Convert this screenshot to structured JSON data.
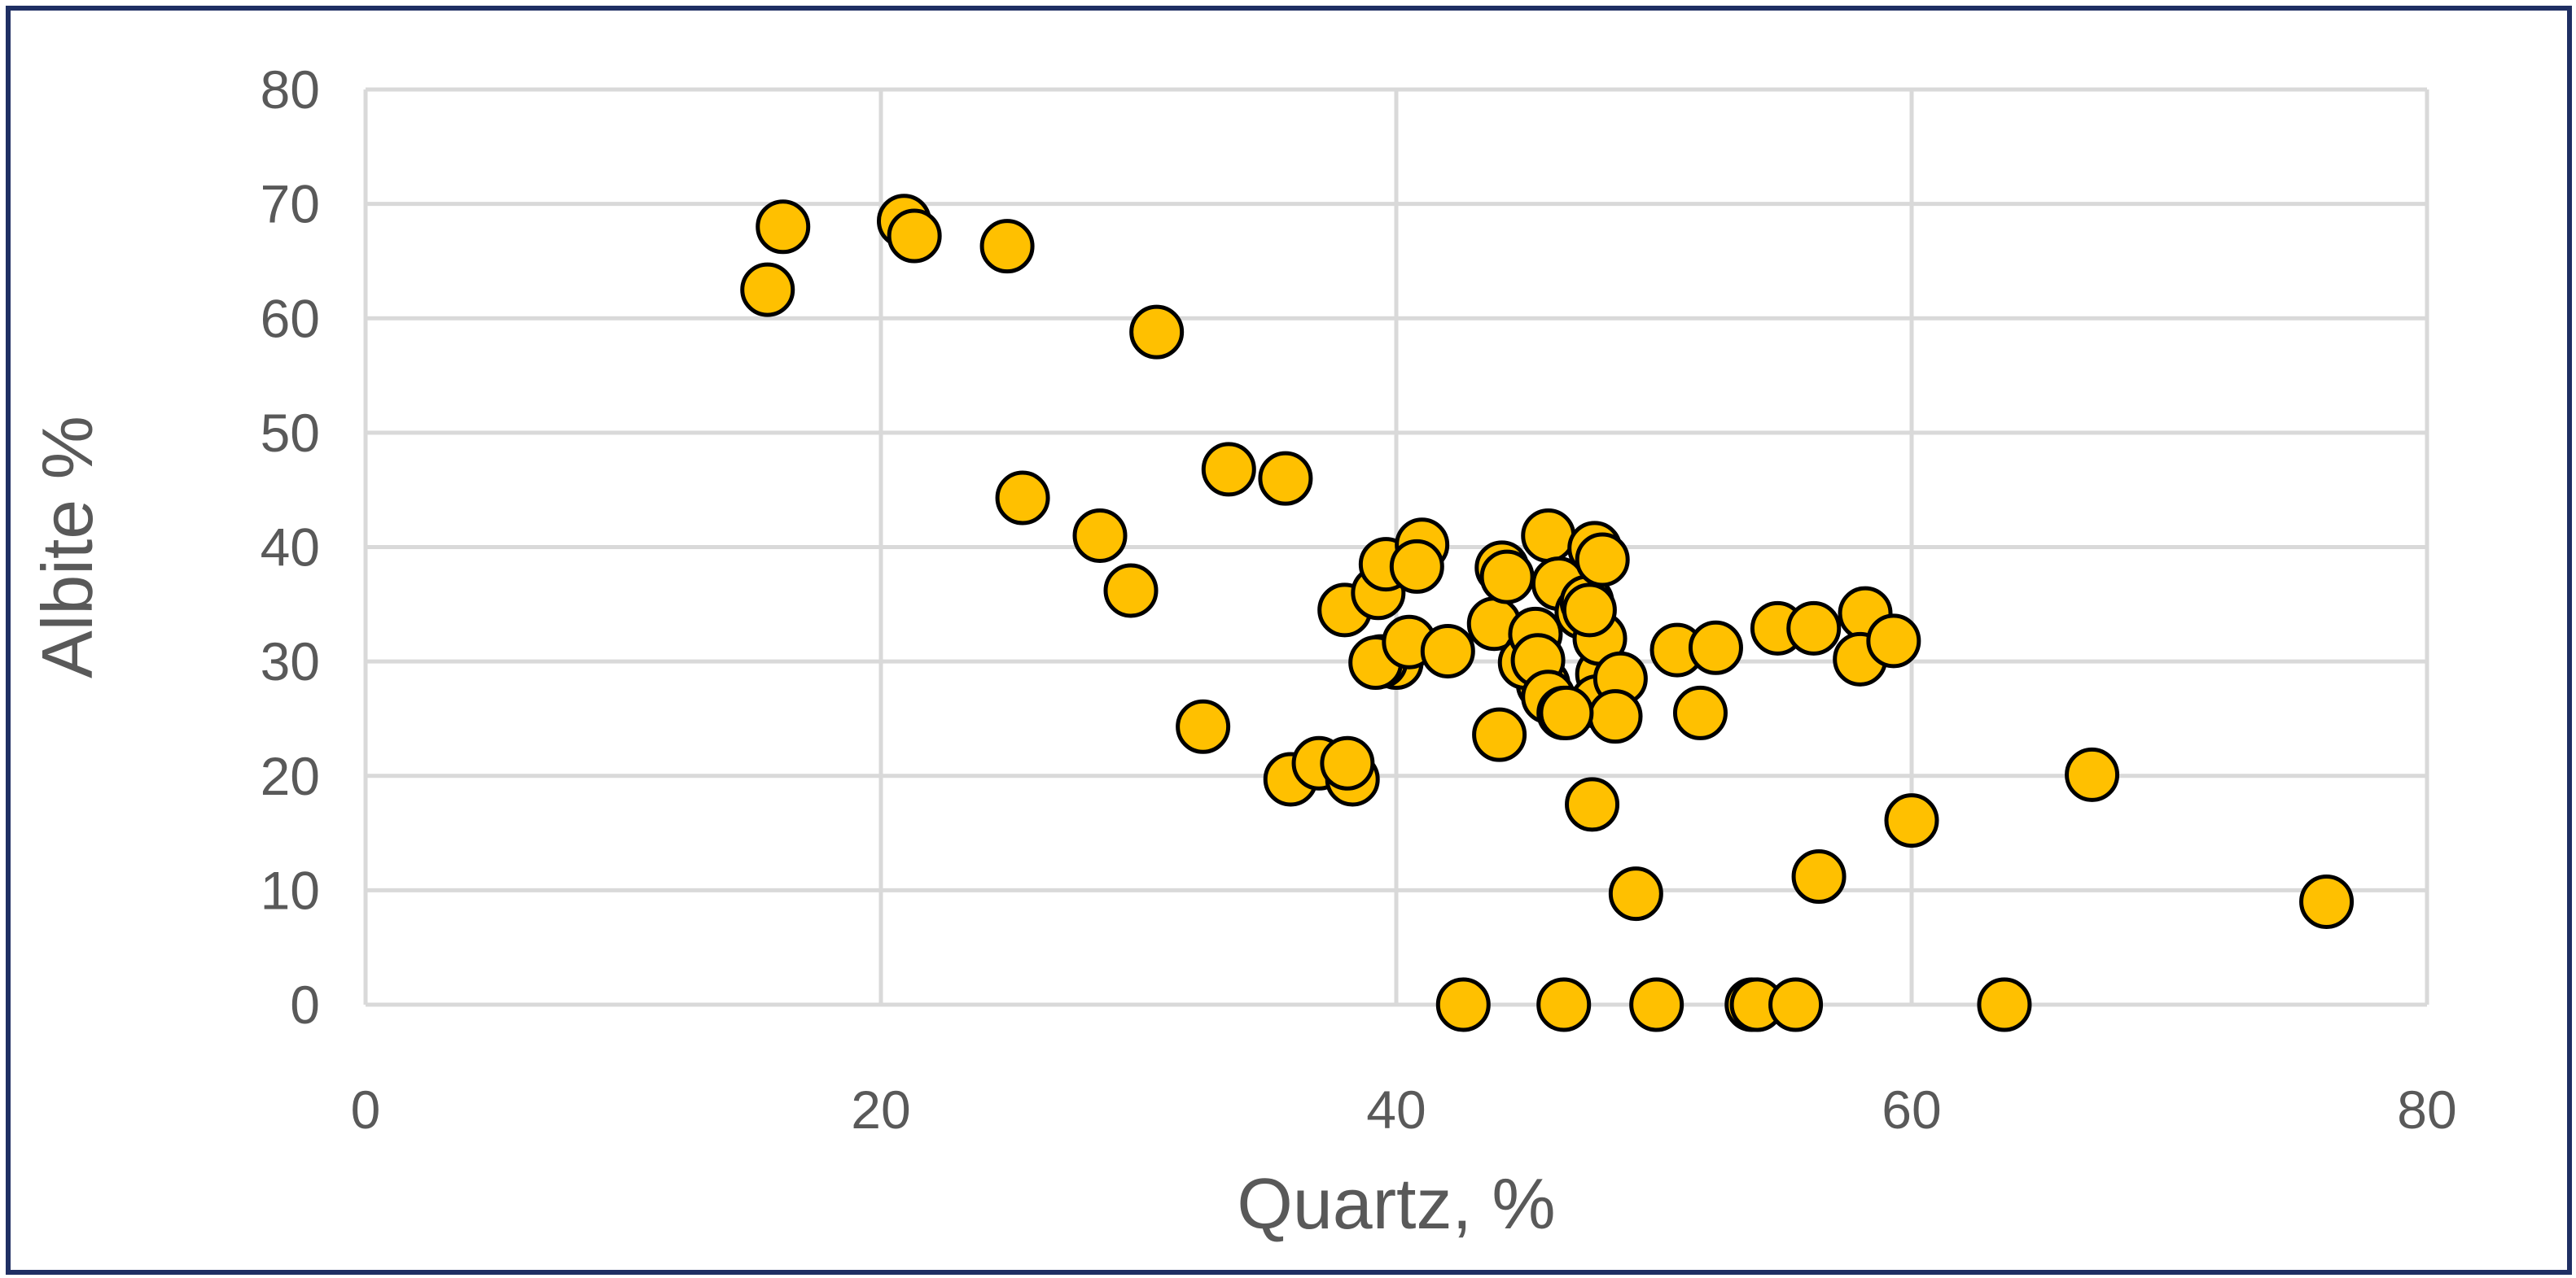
{
  "chart_data": {
    "type": "scatter",
    "title": "",
    "xlabel": "Quartz, %",
    "ylabel": "Albite %",
    "xlim": [
      0,
      80
    ],
    "ylim": [
      0,
      80
    ],
    "x_ticks": [
      0,
      20,
      40,
      60,
      80
    ],
    "y_ticks": [
      0,
      10,
      20,
      30,
      40,
      50,
      60,
      70,
      80
    ],
    "grid": true,
    "legend": "none",
    "colors": {
      "marker_fill": "#ffc000",
      "marker_edge": "#000000",
      "frame": "#1f2f63",
      "text": "#595959",
      "grid": "#d9d9d9"
    },
    "series": [
      {
        "x": [
          15.6,
          16.2,
          20.9,
          21.3,
          24.9,
          30.7,
          33.5,
          35.7,
          25.5,
          28.5,
          29.7,
          32.5,
          35.9,
          37.0,
          38.0,
          38.3,
          38.1,
          39.3,
          39.6,
          40.0,
          41.0,
          40.8,
          39.4,
          39.2,
          40.5,
          42.0,
          43.8,
          44.1,
          44.0,
          44.3,
          45.2,
          45.9,
          46.3,
          45.7,
          45.0,
          45.4,
          45.5,
          45.9,
          46.5,
          47.2,
          47.7,
          47.4,
          48.0,
          48.0,
          47.9,
          47.8,
          48.7,
          48.5,
          47.6,
          46.6,
          47.5,
          49.3,
          50.9,
          52.4,
          51.8,
          54.8,
          56.2,
          58.2,
          58.0,
          59.3,
          56.4,
          60.0,
          67.0,
          76.1,
          42.6,
          46.5,
          50.1,
          53.8,
          54.0,
          55.5,
          63.6
        ],
        "y": [
          62.5,
          68.0,
          68.5,
          67.2,
          66.3,
          58.8,
          46.8,
          46.0,
          44.3,
          41.0,
          36.2,
          24.3,
          19.7,
          21.1,
          34.5,
          19.7,
          21.1,
          36.0,
          38.5,
          29.9,
          40.2,
          38.3,
          30.0,
          29.9,
          31.7,
          30.9,
          33.3,
          38.2,
          23.6,
          37.4,
          30.5,
          41.0,
          36.8,
          28.0,
          29.9,
          32.4,
          30.1,
          26.9,
          25.5,
          34.3,
          39.9,
          35.2,
          38.9,
          28.9,
          32.0,
          26.5,
          28.5,
          25.2,
          17.5,
          25.5,
          34.5,
          9.7,
          31.0,
          31.2,
          25.5,
          32.9,
          32.9,
          34.2,
          30.2,
          31.8,
          11.2,
          16.1,
          20.1,
          9.0,
          0.0,
          0.0,
          0.0,
          0.0,
          0.0,
          0.0,
          0.0
        ]
      }
    ]
  }
}
